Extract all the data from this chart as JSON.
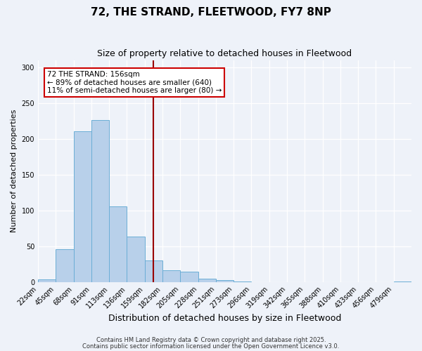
{
  "title": "72, THE STRAND, FLEETWOOD, FY7 8NP",
  "subtitle": "Size of property relative to detached houses in Fleetwood",
  "xlabel": "Distribution of detached houses by size in Fleetwood",
  "ylabel": "Number of detached properties",
  "bin_labels": [
    "22sqm",
    "45sqm",
    "68sqm",
    "91sqm",
    "113sqm",
    "136sqm",
    "159sqm",
    "182sqm",
    "205sqm",
    "228sqm",
    "251sqm",
    "273sqm",
    "296sqm",
    "319sqm",
    "342sqm",
    "365sqm",
    "388sqm",
    "410sqm",
    "433sqm",
    "456sqm",
    "479sqm"
  ],
  "bin_values": [
    4,
    46,
    211,
    226,
    106,
    63,
    30,
    16,
    14,
    5,
    3,
    1,
    0,
    0,
    0,
    0,
    0,
    0,
    0,
    0,
    1
  ],
  "bar_color": "#b8d0ea",
  "bar_edge_color": "#6baed6",
  "vline_x_idx": 6,
  "vline_color": "#990000",
  "annotation_text": "72 THE STRAND: 156sqm\n← 89% of detached houses are smaller (640)\n11% of semi-detached houses are larger (80) →",
  "annotation_box_facecolor": "#ffffff",
  "annotation_box_edgecolor": "#cc0000",
  "ylim": [
    0,
    310
  ],
  "yticks": [
    0,
    50,
    100,
    150,
    200,
    250,
    300
  ],
  "background_color": "#eef2f9",
  "footer1": "Contains HM Land Registry data © Crown copyright and database right 2025.",
  "footer2": "Contains public sector information licensed under the Open Government Licence v3.0.",
  "title_fontsize": 11,
  "subtitle_fontsize": 9,
  "xlabel_fontsize": 9,
  "ylabel_fontsize": 8,
  "tick_fontsize": 7,
  "annotation_fontsize": 7.5,
  "footer_fontsize": 6
}
